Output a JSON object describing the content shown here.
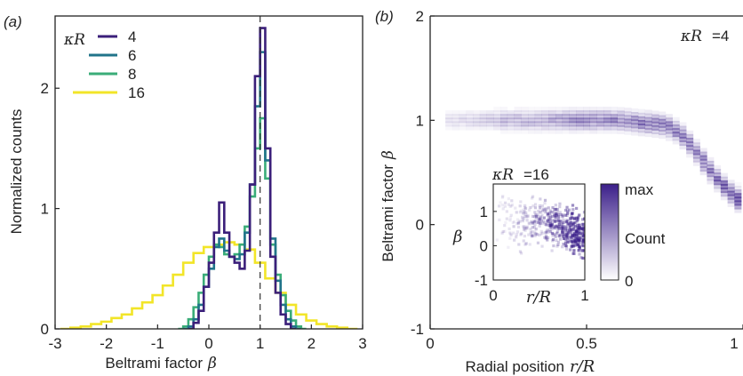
{
  "panel_a": {
    "label": "(a)",
    "ylabel": "Normalized counts",
    "xlabel_text": "Beltrami factor",
    "xlabel_symbol": "β",
    "legend_title": "κR"
  },
  "panel_b": {
    "label": "(b)",
    "ylabel_text": "Beltrami factor",
    "ylabel_symbol": "β",
    "xlabel_text": "Radial position",
    "xlabel_symbol": "r/R",
    "corner_label_symbol": "κR",
    "corner_label_value": "=4",
    "inset": {
      "title_symbol": "κR",
      "title_value": "=16",
      "ylabel_symbol": "β",
      "xlabel_symbol": "r/R",
      "colorbar_max": "max",
      "colorbar_label": "Count",
      "colorbar_min": "0"
    }
  },
  "colors": {
    "kR4": "#3b1f7a",
    "kR6": "#21748a",
    "kR8": "#3aad78",
    "kR16": "#f2e528",
    "heatmap": "#3b1f8a",
    "refline": "#333333"
  },
  "chart_data": [
    {
      "type": "line",
      "panel": "a",
      "xlabel": "Beltrami factor β",
      "ylabel": "Normalized counts",
      "xlim": [
        -3,
        3
      ],
      "ylim": [
        0,
        2.6
      ],
      "xticks": [
        "-3",
        "-2",
        "-1",
        "0",
        "1",
        "2",
        "3"
      ],
      "yticks": [
        "0",
        "1",
        "2"
      ],
      "legend_title": "κR",
      "legend_position": "top-left",
      "reference_line_x": 1,
      "step": true,
      "series": [
        {
          "name": "4",
          "x": [
            -0.35,
            -0.25,
            -0.15,
            -0.05,
            0.05,
            0.15,
            0.25,
            0.35,
            0.45,
            0.55,
            0.65,
            0.75,
            0.85,
            0.95,
            1.05,
            1.15,
            1.25,
            1.35,
            1.45,
            1.55,
            1.65
          ],
          "y": [
            0.0,
            0.05,
            0.15,
            0.35,
            0.55,
            0.8,
            1.05,
            0.8,
            0.6,
            0.55,
            0.5,
            0.65,
            1.2,
            2.1,
            2.5,
            1.5,
            0.6,
            0.3,
            0.12,
            0.04,
            0.0
          ]
        },
        {
          "name": "6",
          "x": [
            -0.45,
            -0.35,
            -0.25,
            -0.15,
            -0.05,
            0.05,
            0.15,
            0.25,
            0.35,
            0.45,
            0.55,
            0.65,
            0.75,
            0.85,
            0.95,
            1.05,
            1.15,
            1.25,
            1.35,
            1.45,
            1.55,
            1.65,
            1.75
          ],
          "y": [
            0.0,
            0.02,
            0.08,
            0.2,
            0.35,
            0.5,
            0.68,
            0.75,
            0.65,
            0.6,
            0.58,
            0.62,
            0.8,
            1.2,
            1.85,
            2.3,
            1.4,
            0.75,
            0.4,
            0.2,
            0.08,
            0.02,
            0.0
          ]
        },
        {
          "name": "8",
          "x": [
            -0.55,
            -0.45,
            -0.35,
            -0.25,
            -0.15,
            -0.05,
            0.05,
            0.15,
            0.25,
            0.35,
            0.45,
            0.55,
            0.65,
            0.75,
            0.85,
            0.95,
            1.05,
            1.15,
            1.25,
            1.35,
            1.45,
            1.55,
            1.65,
            1.75,
            1.85
          ],
          "y": [
            0.0,
            0.02,
            0.08,
            0.18,
            0.3,
            0.45,
            0.6,
            0.7,
            0.68,
            0.62,
            0.6,
            0.62,
            0.7,
            0.85,
            1.1,
            1.5,
            1.75,
            1.25,
            0.7,
            0.45,
            0.28,
            0.15,
            0.07,
            0.02,
            0.0
          ]
        },
        {
          "name": "16",
          "x": [
            -2.8,
            -2.6,
            -2.4,
            -2.2,
            -2.0,
            -1.8,
            -1.6,
            -1.4,
            -1.2,
            -1.0,
            -0.8,
            -0.6,
            -0.4,
            -0.2,
            0.0,
            0.2,
            0.4,
            0.6,
            0.8,
            1.0,
            1.2,
            1.4,
            1.6,
            1.8,
            2.0,
            2.2,
            2.4,
            2.6,
            2.8
          ],
          "y": [
            0.0,
            0.01,
            0.02,
            0.04,
            0.06,
            0.09,
            0.12,
            0.17,
            0.22,
            0.28,
            0.36,
            0.45,
            0.55,
            0.63,
            0.68,
            0.7,
            0.72,
            0.7,
            0.66,
            0.55,
            0.42,
            0.3,
            0.2,
            0.12,
            0.07,
            0.04,
            0.02,
            0.01,
            0.0
          ]
        }
      ]
    },
    {
      "type": "heatmap",
      "panel": "b",
      "xlabel": "Radial position r/R",
      "ylabel": "Beltrami factor β",
      "xlim": [
        0,
        1
      ],
      "ylim": [
        -1,
        2
      ],
      "xticks": [
        "0",
        "0.5",
        "1"
      ],
      "yticks": [
        "-1",
        "0",
        "1",
        "2"
      ],
      "annotation": "κR =4",
      "ridge": {
        "r": [
          0.1,
          0.2,
          0.3,
          0.4,
          0.5,
          0.6,
          0.7,
          0.75,
          0.8,
          0.85,
          0.9,
          0.95,
          1.0
        ],
        "beta": [
          1.0,
          1.0,
          1.0,
          1.0,
          1.0,
          1.0,
          0.97,
          0.95,
          0.88,
          0.7,
          0.5,
          0.33,
          0.2
        ],
        "intensity": [
          0.15,
          0.25,
          0.35,
          0.45,
          0.55,
          0.6,
          0.65,
          0.65,
          0.7,
          0.7,
          0.75,
          0.85,
          1.0
        ]
      }
    },
    {
      "type": "heatmap",
      "panel": "b-inset",
      "xlabel": "r/R",
      "ylabel": "β",
      "xlim": [
        0,
        1
      ],
      "ylim": [
        -1,
        1.8
      ],
      "xticks": [
        "0",
        "1"
      ],
      "yticks": [
        "-1",
        "0",
        "1"
      ],
      "annotation": "κR =16",
      "colorbar": [
        "0",
        "max"
      ],
      "colorbar_label": "Count"
    }
  ]
}
